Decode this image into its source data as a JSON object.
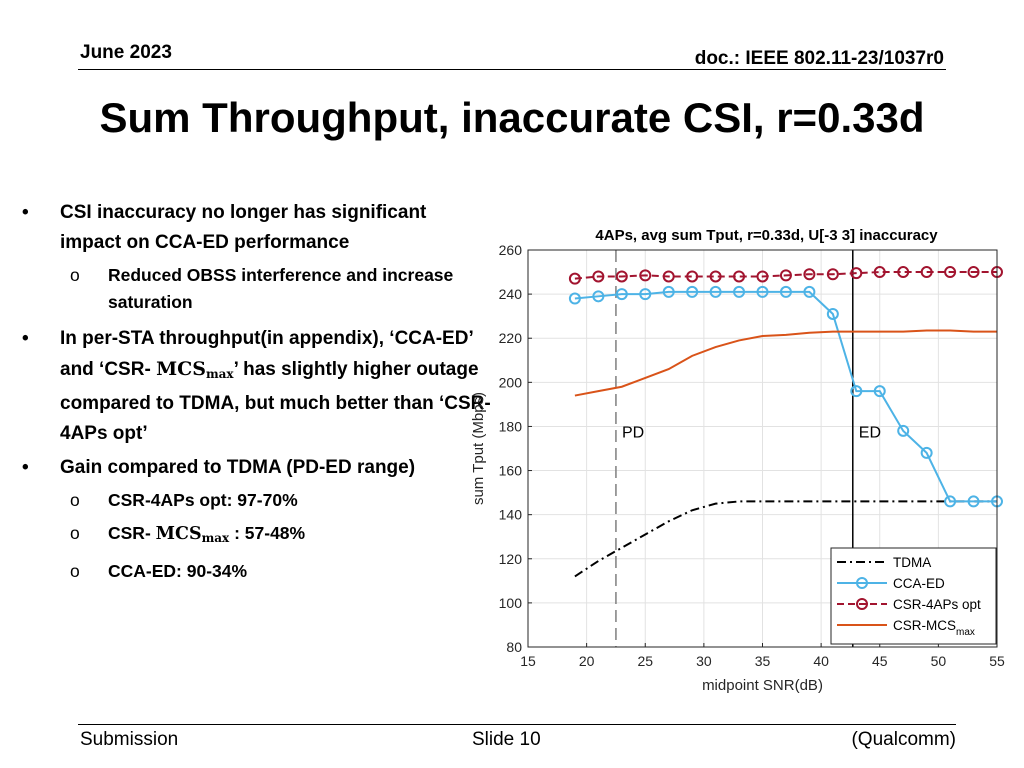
{
  "header": {
    "date": "June 2023",
    "doc": "doc.: IEEE 802.11-23/1037r0"
  },
  "title": "Sum Throughput, inaccurate CSI, r=0.33d",
  "bullets": {
    "b1": "CSI inaccuracy no longer has significant impact on CCA-ED performance",
    "b1_sub": "Reduced OBSS interference and increase saturation",
    "b2_pre": "In per-STA throughput(in appendix), ‘CCA-ED’ and ‘CSR- ",
    "b2_mcs": "MCS",
    "b2_max": "max",
    "b2_post": "’ has slightly higher outage compared to TDMA, but much better than ‘CSR-4APs opt’",
    "b3": "Gain compared to TDMA (PD-ED range)",
    "b3_sub1": "CSR-4APs opt: 97-70%",
    "b3_sub2_pre": "CSR- ",
    "b3_sub2_mcs": "MCS",
    "b3_sub2_max": "max",
    "b3_sub2_post": " : 57-48%",
    "b3_sub3": "CCA-ED: 90-34%",
    "bullet_marker": "•",
    "sub_marker": "o"
  },
  "footer": {
    "left": "Submission",
    "center": "Slide 10",
    "right": "(Qualcomm)"
  },
  "chart_data": {
    "type": "line",
    "title": "4APs, avg sum Tput, r=0.33d, U[-3 3] inaccuracy",
    "xlabel": "midpoint SNR(dB)",
    "ylabel": "sum Tput (Mbps)",
    "xlim": [
      15,
      55
    ],
    "ylim": [
      80,
      260
    ],
    "xticks": [
      15,
      20,
      25,
      30,
      35,
      40,
      45,
      50,
      55
    ],
    "yticks": [
      80,
      100,
      120,
      140,
      160,
      180,
      200,
      220,
      240,
      260
    ],
    "grid": true,
    "legend": "bottom-right",
    "vlines": [
      {
        "x": 22.5,
        "label": "PD",
        "style": "dashed",
        "color": "#7f7f7f"
      },
      {
        "x": 42.7,
        "label": "ED",
        "style": "solid",
        "color": "#000000"
      }
    ],
    "series": [
      {
        "name": "TDMA",
        "color": "#000000",
        "dash": "dashdot",
        "marker": "none",
        "x": [
          19,
          21,
          23,
          25,
          27,
          29,
          31,
          33,
          35,
          37,
          39,
          41,
          43,
          45,
          47,
          49,
          51,
          53,
          55
        ],
        "y": [
          112,
          119,
          125,
          131,
          137,
          142,
          145,
          146,
          146,
          146,
          146,
          146,
          146,
          146,
          146,
          146,
          146,
          146,
          146
        ]
      },
      {
        "name": "CCA-ED",
        "color": "#4db3e6",
        "dash": "solid",
        "marker": "circle",
        "x": [
          19,
          21,
          23,
          25,
          27,
          29,
          31,
          33,
          35,
          37,
          39,
          41,
          43,
          45,
          47,
          49,
          51,
          53,
          55
        ],
        "y": [
          238,
          239,
          240,
          240,
          241,
          241,
          241,
          241,
          241,
          241,
          241,
          231,
          196,
          196,
          178,
          168,
          146,
          146,
          146
        ]
      },
      {
        "name": "CSR-4APs opt",
        "color": "#a2142f",
        "dash": "dashed",
        "marker": "circle",
        "x": [
          19,
          21,
          23,
          25,
          27,
          29,
          31,
          33,
          35,
          37,
          39,
          41,
          43,
          45,
          47,
          49,
          51,
          53,
          55
        ],
        "y": [
          247,
          248,
          248,
          248.5,
          248,
          248,
          248,
          248,
          248,
          248.5,
          249,
          249,
          249.5,
          250,
          250,
          250,
          250,
          250,
          250
        ]
      },
      {
        "name": "CSR-MCS",
        "name_sub": "max",
        "color": "#d95319",
        "dash": "solid",
        "marker": "none",
        "x": [
          19,
          21,
          23,
          25,
          27,
          29,
          31,
          33,
          35,
          37,
          39,
          41,
          43,
          45,
          47,
          49,
          51,
          53,
          55
        ],
        "y": [
          194,
          196,
          198,
          202,
          206,
          212,
          216,
          219,
          221,
          221.5,
          222.5,
          223,
          223,
          223,
          223,
          223.5,
          223.5,
          223,
          223
        ]
      }
    ]
  }
}
